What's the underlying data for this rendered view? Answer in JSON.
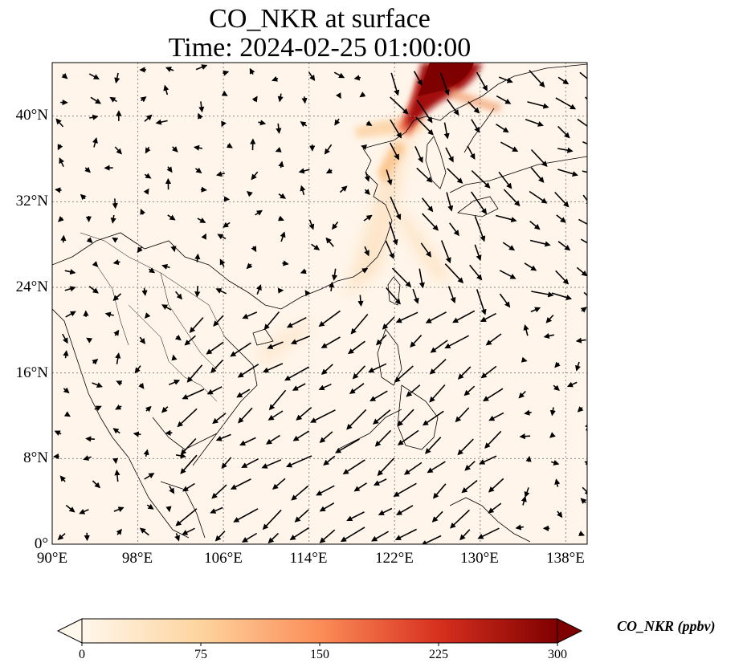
{
  "title": {
    "line1": "CO_NKR at surface",
    "line2": "Time: 2024-02-25 01:00:00"
  },
  "map": {
    "variable": "CO_NKR",
    "level": "surface",
    "lon_range": [
      90,
      140
    ],
    "lat_range": [
      0,
      45
    ],
    "lon_ticks": [
      "90°E",
      "98°E",
      "106°E",
      "114°E",
      "122°E",
      "130°E",
      "138°E"
    ],
    "lat_ticks": [
      "0°",
      "8°N",
      "16°N",
      "24°N",
      "32°N",
      "40°N"
    ],
    "gridlines": true,
    "colormap": "OrRd",
    "plume_color_high": "#7f0000",
    "background_color": "#fff5ea",
    "vector_color": "#000000"
  },
  "colorbar": {
    "label": "CO_NKR (ppbv)",
    "ticks": [
      "0",
      "75",
      "150",
      "225",
      "300"
    ],
    "min": 0,
    "max": 300,
    "extend": "both"
  }
}
